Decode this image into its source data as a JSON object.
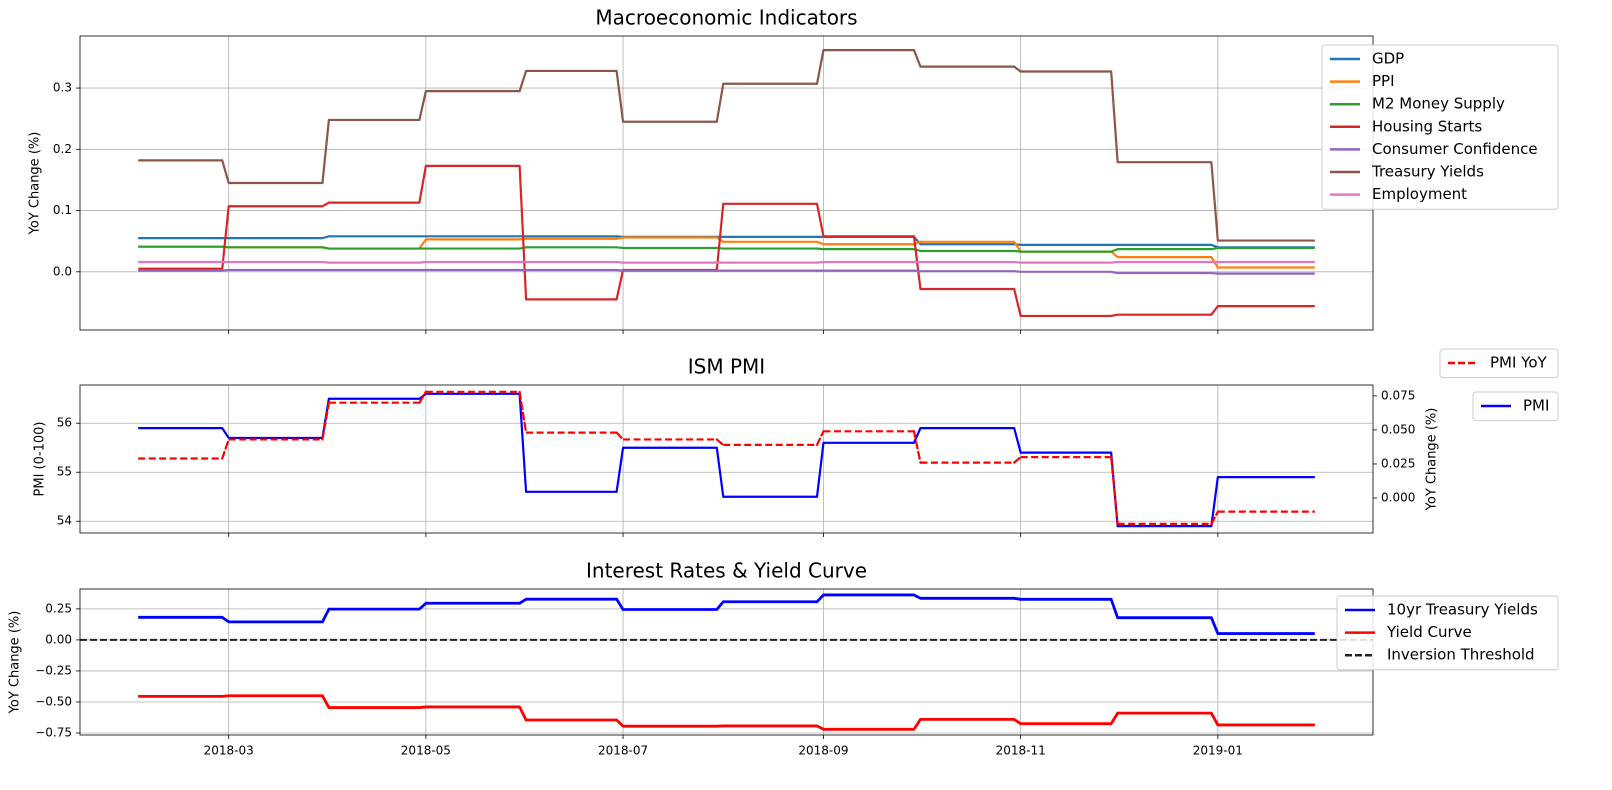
{
  "chart_data": [
    {
      "type": "line",
      "title": "Macroeconomic Indicators",
      "ylabel": "YoY Change (%)",
      "x": [
        "2018-02",
        "2018-03",
        "2018-04",
        "2018-05",
        "2018-06",
        "2018-07",
        "2018-08",
        "2018-09",
        "2018-10",
        "2018-11",
        "2018-12",
        "2019-01"
      ],
      "xlim": [
        "2018-01-14",
        "2019-02-18"
      ],
      "xticks": [
        "2018-03",
        "2018-05",
        "2018-07",
        "2018-09",
        "2018-11",
        "2019-01"
      ],
      "show_xtick_labels": false,
      "ylim": [
        -0.095,
        0.385
      ],
      "yticks": [
        {
          "value": 0,
          "label": "0.0"
        },
        0.1,
        0.2,
        0.3
      ],
      "grid": true,
      "legend": "upper right",
      "drawstyle": "steps",
      "series": [
        {
          "name": "GDP",
          "color": "#1f77b4",
          "values": [
            0.055,
            0.055,
            0.058,
            0.058,
            0.058,
            0.057,
            0.057,
            0.057,
            0.045,
            0.044,
            0.044,
            0.04
          ]
        },
        {
          "name": "PPI",
          "color": "#ff7f0e",
          "values": [
            0.041,
            0.04,
            0.038,
            0.053,
            0.054,
            0.056,
            0.049,
            0.045,
            0.049,
            0.033,
            0.024,
            0.007
          ]
        },
        {
          "name": "M2 Money Supply",
          "color": "#2ca02c",
          "values": [
            0.041,
            0.04,
            0.038,
            0.038,
            0.04,
            0.039,
            0.038,
            0.037,
            0.034,
            0.033,
            0.037,
            0.039
          ]
        },
        {
          "name": "Housing Starts",
          "color": "#d62728",
          "values": [
            0.005,
            0.107,
            0.113,
            0.173,
            -0.045,
            0.003,
            0.111,
            0.058,
            -0.028,
            -0.072,
            -0.07,
            -0.056
          ]
        },
        {
          "name": "Consumer Confidence",
          "color": "#9467bd",
          "values": [
            0.002,
            0.003,
            0.003,
            0.003,
            0.003,
            0.002,
            0.002,
            0.002,
            0.001,
            0.0,
            -0.002,
            -0.003
          ]
        },
        {
          "name": "Treasury Yields",
          "color": "#8c564b",
          "values": [
            0.182,
            0.145,
            0.248,
            0.295,
            0.328,
            0.245,
            0.307,
            0.362,
            0.335,
            0.327,
            0.179,
            0.051
          ]
        },
        {
          "name": "Employment",
          "color": "#e377c2",
          "values": [
            0.016,
            0.016,
            0.015,
            0.016,
            0.016,
            0.015,
            0.015,
            0.016,
            0.016,
            0.015,
            0.016,
            0.016
          ]
        }
      ]
    },
    {
      "type": "line",
      "title": "ISM PMI",
      "ylabel": "PMI (0-100)",
      "y2label": "YoY Change (%)",
      "x": [
        "2018-02",
        "2018-03",
        "2018-04",
        "2018-05",
        "2018-06",
        "2018-07",
        "2018-08",
        "2018-09",
        "2018-10",
        "2018-11",
        "2018-12",
        "2019-01"
      ],
      "xlim": [
        "2018-01-14",
        "2019-02-18"
      ],
      "xticks": [
        "2018-03",
        "2018-05",
        "2018-07",
        "2018-09",
        "2018-11",
        "2019-01"
      ],
      "show_xtick_labels": false,
      "ylim": [
        53.76,
        56.78
      ],
      "yticks": [
        54,
        55,
        56
      ],
      "y2lim": [
        -0.0257,
        0.083
      ],
      "y2ticks": [
        {
          "value": 0,
          "label": "0.000"
        },
        0.025,
        {
          "value": 0.05,
          "label": "0.050"
        },
        0.075
      ],
      "grid": true,
      "legend": "upper right",
      "drawstyle": "steps",
      "series": [
        {
          "name": "PMI",
          "color": "#0000ff",
          "axis": "y",
          "values": [
            55.9,
            55.7,
            56.5,
            56.6,
            54.6,
            55.5,
            54.5,
            55.6,
            55.9,
            55.4,
            53.9,
            54.9
          ]
        },
        {
          "name": "PMI YoY",
          "color": "#ff0000",
          "axis": "y2",
          "dash": true,
          "values": [
            0.029,
            0.043,
            0.07,
            0.078,
            0.048,
            0.043,
            0.039,
            0.049,
            0.026,
            0.03,
            -0.019,
            -0.01
          ]
        }
      ]
    },
    {
      "type": "line",
      "title": "Interest Rates & Yield Curve",
      "ylabel": "YoY Change (%)",
      "x": [
        "2018-02",
        "2018-03",
        "2018-04",
        "2018-05",
        "2018-06",
        "2018-07",
        "2018-08",
        "2018-09",
        "2018-10",
        "2018-11",
        "2018-12",
        "2019-01"
      ],
      "xlim": [
        "2018-01-14",
        "2019-02-18"
      ],
      "xticks": [
        "2018-03",
        "2018-05",
        "2018-07",
        "2018-09",
        "2018-11",
        "2019-01"
      ],
      "show_xtick_labels": true,
      "ylim": [
        -0.766,
        0.41
      ],
      "yticks": [
        {
          "value": -0.75,
          "label": "−0.75"
        },
        {
          "value": -0.5,
          "label": "−0.50"
        },
        {
          "value": -0.25,
          "label": "−0.25"
        },
        {
          "value": 0,
          "label": "0.00"
        },
        0.25
      ],
      "grid": true,
      "legend": "upper right",
      "drawstyle": "steps",
      "series": [
        {
          "name": "10yr Treasury Yields",
          "color": "#0000ff",
          "values": [
            0.182,
            0.145,
            0.248,
            0.295,
            0.328,
            0.245,
            0.307,
            0.362,
            0.335,
            0.327,
            0.179,
            0.051
          ]
        },
        {
          "name": "Yield Curve",
          "color": "#ff0000",
          "values": [
            -0.455,
            -0.45,
            -0.545,
            -0.54,
            -0.645,
            -0.695,
            -0.693,
            -0.72,
            -0.64,
            -0.675,
            -0.59,
            -0.685
          ]
        }
      ],
      "hlines": [
        {
          "name": "Inversion Threshold",
          "value": 0,
          "color": "#222222",
          "dash": true
        }
      ]
    }
  ]
}
